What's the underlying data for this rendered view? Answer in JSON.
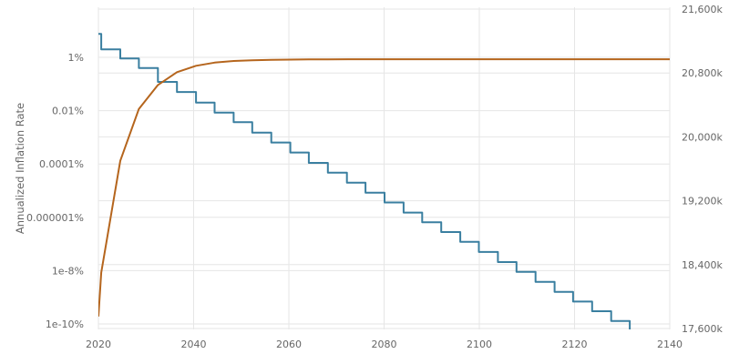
{
  "chart_data": {
    "type": "line",
    "title": "",
    "xlabel": "",
    "ylabel_left": "Annualized Inflation Rate",
    "ylabel_right": "",
    "x_ticks": [
      "2020",
      "2040",
      "2060",
      "2080",
      "2100",
      "2120",
      "2140"
    ],
    "xlim": [
      2020,
      2140
    ],
    "left_axis": {
      "scale": "log",
      "unit": "percent",
      "tick_labels": [
        "1e-10%",
        "1e-8%",
        "0.000001%",
        "0.0001%",
        "0.01%",
        "1%"
      ],
      "tick_values": [
        1e-10,
        1e-08,
        1e-06,
        0.0001,
        0.01,
        1
      ]
    },
    "right_axis": {
      "scale": "linear",
      "tick_labels": [
        "17,600k",
        "18,400k",
        "19,200k",
        "20,000k",
        "20,800k",
        "21,600k"
      ],
      "tick_values": [
        17600,
        18400,
        19200,
        20000,
        20800,
        21600
      ]
    },
    "grid": true,
    "legend": "none",
    "colors": {
      "inflation": "#3a7fa0",
      "supply": "#b5651d"
    },
    "series": [
      {
        "key": "inflation",
        "axis": "left",
        "stepped": true,
        "x": [
          2020,
          2020.6,
          2024.6,
          2028.5,
          2032.5,
          2036.5,
          2040.5,
          2044.4,
          2048.4,
          2052.3,
          2056.3,
          2060.3,
          2064.2,
          2068.2,
          2072.2,
          2076.1,
          2080.1,
          2084.1,
          2088.0,
          2092.0,
          2096.0,
          2099.9,
          2103.9,
          2107.8,
          2111.8,
          2115.8,
          2119.7,
          2123.7,
          2127.7,
          2131.6,
          2135.6,
          2140
        ],
        "y": [
          7.6,
          2.0,
          0.9,
          0.4,
          0.12,
          0.05,
          0.02,
          0.0085,
          0.0037,
          0.0015,
          0.00064,
          0.00027,
          0.00011,
          4.7e-05,
          2e-05,
          8.4e-06,
          3.6e-06,
          1.5e-06,
          6.5e-07,
          2.8e-07,
          1.2e-07,
          5e-08,
          2.1e-08,
          9e-09,
          3.8e-09,
          1.6e-09,
          6.9e-10,
          3e-10,
          1.3e-10,
          5.5e-11,
          2.3e-11,
          1e-11
        ]
      },
      {
        "key": "supply",
        "axis": "right",
        "stepped": false,
        "x": [
          2020,
          2020.6,
          2024.6,
          2028.5,
          2032.5,
          2036.5,
          2040.5,
          2044.4,
          2048.4,
          2052.3,
          2056.3,
          2060.3,
          2064.2,
          2068.2,
          2080,
          2100,
          2120,
          2140
        ],
        "y": [
          17750,
          18300,
          19700,
          20350,
          20650,
          20810,
          20890,
          20930,
          20950,
          20960,
          20965,
          20968,
          20970,
          20971,
          20972,
          20972,
          20972,
          20972
        ]
      }
    ]
  }
}
